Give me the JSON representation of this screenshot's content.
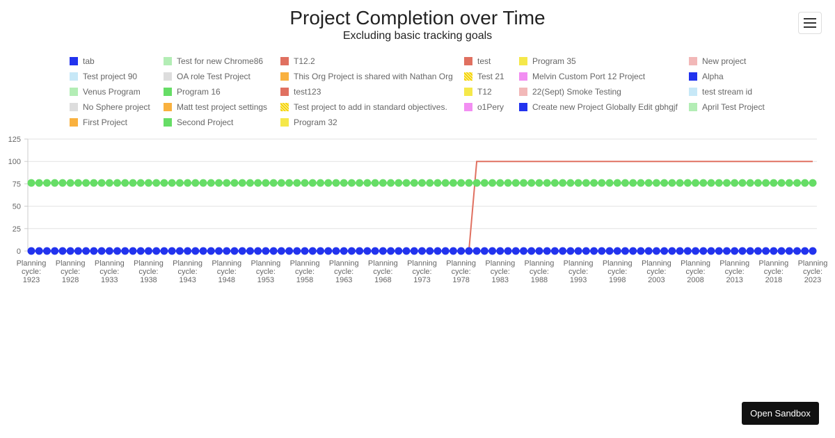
{
  "chart_data": {
    "type": "line",
    "title": "Project Completion over Time",
    "subtitle": "Excluding basic tracking goals",
    "xlabel": "",
    "ylabel": "",
    "ylim": [
      0,
      125
    ],
    "y_ticks": [
      0,
      25,
      50,
      75,
      100,
      125
    ],
    "grid": true,
    "legend_position": "top",
    "x_label_prefix": "Planning cycle:",
    "x_start": 1923,
    "x_end": 2023,
    "x_tick_labels": [
      1923,
      1928,
      1933,
      1938,
      1943,
      1948,
      1953,
      1958,
      1963,
      1968,
      1973,
      1978,
      1983,
      1988,
      1993,
      1998,
      2003,
      2008,
      2013,
      2018,
      2023
    ],
    "series": [
      {
        "name": "tab",
        "color": "#2233ee",
        "pattern": "solid",
        "marker": true,
        "values_constant": 0
      },
      {
        "name": "Test project 90",
        "color": "#c7e8f7",
        "pattern": "solid"
      },
      {
        "name": "Venus Program",
        "color": "#b3edb5",
        "pattern": "solid"
      },
      {
        "name": "No Sphere project",
        "color": "#dddddd",
        "pattern": "solid"
      },
      {
        "name": "First Project",
        "color": "#f9b13f",
        "pattern": "solid"
      },
      {
        "name": "Test for new Chrome86",
        "color": "#b3edb5",
        "pattern": "solid"
      },
      {
        "name": "OA role Test Project",
        "color": "#dddddd",
        "pattern": "solid"
      },
      {
        "name": "Program 16",
        "color": "#66dd66",
        "pattern": "solid",
        "marker": true,
        "values_constant": 76
      },
      {
        "name": "Matt test project settings",
        "color": "#f9b13f",
        "pattern": "solid"
      },
      {
        "name": "Second Project",
        "color": "#66dd66",
        "pattern": "solid"
      },
      {
        "name": "T12.2",
        "color": "#e07060",
        "pattern": "solid"
      },
      {
        "name": "This Org Project is shared with Nathan Org",
        "color": "#f9b13f",
        "pattern": "solid"
      },
      {
        "name": "test123",
        "color": "#e07060",
        "pattern": "solid"
      },
      {
        "name": "Test project to add in standard objectives.",
        "color": "#f5d400",
        "pattern": "hatched"
      },
      {
        "name": "Program 32",
        "color": "#f5e84a",
        "pattern": "solid"
      },
      {
        "name": "test",
        "color": "#e07060",
        "pattern": "solid",
        "step_line": {
          "before_value": 0,
          "after_value": 100,
          "step_start": 1979,
          "step_end": 1980
        }
      },
      {
        "name": "Test 21",
        "color": "#f5d400",
        "pattern": "hatched"
      },
      {
        "name": "T12",
        "color": "#f5e84a",
        "pattern": "solid"
      },
      {
        "name": "o1Pery",
        "color": "#f28ef2",
        "pattern": "solid"
      },
      {
        "name": "Program 35",
        "color": "#f5e84a",
        "pattern": "solid"
      },
      {
        "name": "Melvin Custom Port 12 Project",
        "color": "#f28ef2",
        "pattern": "solid"
      },
      {
        "name": "22(Sept) Smoke Testing",
        "color": "#f2b8b8",
        "pattern": "solid"
      },
      {
        "name": "Create new Project Globally Edit gbhgjf",
        "color": "#2233ee",
        "pattern": "solid"
      },
      {
        "name": "New project",
        "color": "#f2b8b8",
        "pattern": "solid"
      },
      {
        "name": "Alpha",
        "color": "#2233ee",
        "pattern": "solid"
      },
      {
        "name": "test stream id",
        "color": "#c7e8f7",
        "pattern": "solid"
      },
      {
        "name": "April Test Project",
        "color": "#b3edb5",
        "pattern": "solid"
      }
    ]
  },
  "ui": {
    "menu_icon": "hamburger-menu-icon",
    "sandbox_label": "Open Sandbox"
  }
}
